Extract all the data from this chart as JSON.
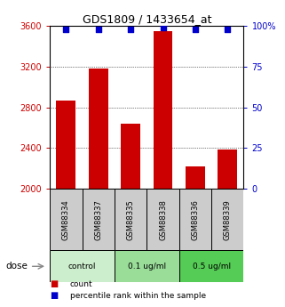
{
  "title": "GDS1809 / 1433654_at",
  "samples": [
    "GSM88334",
    "GSM88337",
    "GSM88335",
    "GSM88338",
    "GSM88336",
    "GSM88339"
  ],
  "bar_values": [
    2870,
    3180,
    2640,
    3550,
    2220,
    2390
  ],
  "percentile_values": [
    98,
    98,
    98,
    99,
    98,
    98
  ],
  "bar_color": "#cc0000",
  "dot_color": "#0000cc",
  "ylim_left": [
    2000,
    3600
  ],
  "ylim_right": [
    0,
    100
  ],
  "yticks_left": [
    2000,
    2400,
    2800,
    3200,
    3600
  ],
  "yticks_right": [
    0,
    25,
    50,
    75,
    100
  ],
  "ytick_labels_right": [
    "0",
    "25",
    "50",
    "75",
    "100%"
  ],
  "groups": [
    {
      "label": "control",
      "cols": [
        0,
        1
      ],
      "color": "#cceecc"
    },
    {
      "label": "0.1 ug/ml",
      "cols": [
        2,
        3
      ],
      "color": "#99dd99"
    },
    {
      "label": "0.5 ug/ml",
      "cols": [
        4,
        5
      ],
      "color": "#55cc55"
    }
  ],
  "dose_label": "dose",
  "legend_count_label": "count",
  "legend_pct_label": "percentile rank within the sample",
  "left_tick_color": "#cc0000",
  "right_tick_color": "#0000cc",
  "bg_color": "#ffffff",
  "bar_width": 0.6,
  "sample_box_color": "#cccccc"
}
